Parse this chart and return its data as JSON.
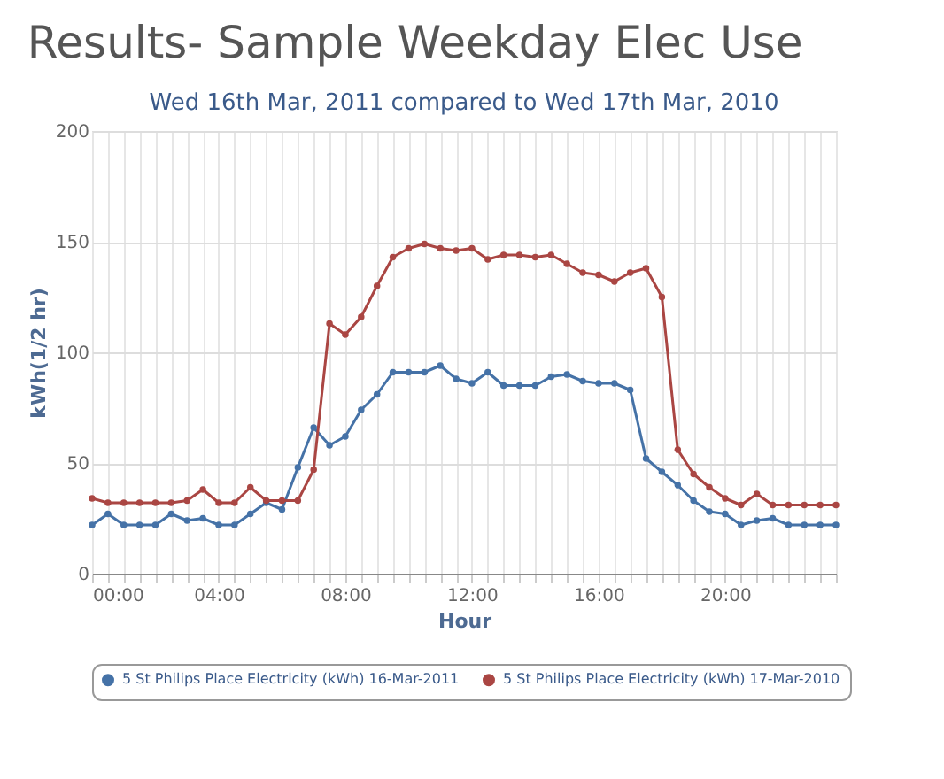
{
  "chart_data": {
    "type": "line",
    "title": "Results- Sample Weekday Elec Use",
    "subtitle": "Wed 16th Mar, 2011 compared to Wed 17th Mar, 2010",
    "xlabel": "Hour",
    "ylabel": "kWh(1/2 hr)",
    "x": [
      0,
      0.5,
      1,
      1.5,
      2,
      2.5,
      3,
      3.5,
      4,
      4.5,
      5,
      5.5,
      6,
      6.5,
      7,
      7.5,
      8,
      8.5,
      9,
      9.5,
      10,
      10.5,
      11,
      11.5,
      12,
      12.5,
      13,
      13.5,
      14,
      14.5,
      15,
      15.5,
      16,
      16.5,
      17,
      17.5,
      18,
      18.5,
      19,
      19.5,
      20,
      20.5,
      21,
      21.5,
      22,
      22.5,
      23,
      23.5
    ],
    "series": [
      {
        "name": "5 St Philips Place Electricity (kWh) 16-Mar-2011",
        "color": "#4572a7",
        "values": [
          22,
          27,
          22,
          22,
          22,
          27,
          24,
          25,
          22,
          22,
          27,
          32,
          29,
          48,
          66,
          58,
          62,
          74,
          81,
          91,
          91,
          91,
          94,
          88,
          86,
          91,
          85,
          85,
          85,
          89,
          90,
          87,
          86,
          86,
          83,
          52,
          46,
          40,
          33,
          28,
          27,
          22,
          24,
          25,
          22,
          22,
          22,
          22
        ]
      },
      {
        "name": "5 St Philips Place Electricity (kWh) 17-Mar-2010",
        "color": "#aa4643",
        "values": [
          34,
          32,
          32,
          32,
          32,
          32,
          33,
          38,
          32,
          32,
          39,
          33,
          33,
          33,
          47,
          113,
          108,
          116,
          130,
          143,
          147,
          149,
          147,
          146,
          147,
          142,
          144,
          144,
          143,
          144,
          140,
          136,
          135,
          132,
          136,
          138,
          125,
          56,
          45,
          39,
          34,
          31,
          36,
          31,
          31,
          31,
          31,
          31
        ]
      }
    ],
    "xlim": [
      0,
      23.5
    ],
    "xticks": [
      {
        "value": 0,
        "label": "00:00"
      },
      {
        "value": 0.5,
        "label": null
      },
      {
        "value": 1,
        "label": null
      },
      {
        "value": 1.5,
        "label": null
      },
      {
        "value": 2,
        "label": null
      },
      {
        "value": 2.5,
        "label": null
      },
      {
        "value": 3,
        "label": null
      },
      {
        "value": 3.5,
        "label": null
      },
      {
        "value": 4,
        "label": "04:00"
      },
      {
        "value": 4.5,
        "label": null
      },
      {
        "value": 5,
        "label": null
      },
      {
        "value": 5.5,
        "label": null
      },
      {
        "value": 6,
        "label": null
      },
      {
        "value": 6.5,
        "label": null
      },
      {
        "value": 7,
        "label": null
      },
      {
        "value": 7.5,
        "label": null
      },
      {
        "value": 8,
        "label": "08:00"
      },
      {
        "value": 8.5,
        "label": null
      },
      {
        "value": 9,
        "label": null
      },
      {
        "value": 9.5,
        "label": null
      },
      {
        "value": 10,
        "label": null
      },
      {
        "value": 10.5,
        "label": null
      },
      {
        "value": 11,
        "label": null
      },
      {
        "value": 11.5,
        "label": null
      },
      {
        "value": 12,
        "label": "12:00"
      },
      {
        "value": 12.5,
        "label": null
      },
      {
        "value": 13,
        "label": null
      },
      {
        "value": 13.5,
        "label": null
      },
      {
        "value": 14,
        "label": null
      },
      {
        "value": 14.5,
        "label": null
      },
      {
        "value": 15,
        "label": null
      },
      {
        "value": 15.5,
        "label": null
      },
      {
        "value": 16,
        "label": "16:00"
      },
      {
        "value": 16.5,
        "label": null
      },
      {
        "value": 17,
        "label": null
      },
      {
        "value": 17.5,
        "label": null
      },
      {
        "value": 18,
        "label": null
      },
      {
        "value": 18.5,
        "label": null
      },
      {
        "value": 19,
        "label": null
      },
      {
        "value": 19.5,
        "label": null
      },
      {
        "value": 20,
        "label": "20:00"
      },
      {
        "value": 20.5,
        "label": null
      },
      {
        "value": 21,
        "label": null
      },
      {
        "value": 21.5,
        "label": null
      },
      {
        "value": 22,
        "label": null
      },
      {
        "value": 22.5,
        "label": null
      },
      {
        "value": 23,
        "label": null
      },
      {
        "value": 23.5,
        "label": null
      }
    ],
    "ylim": [
      0,
      200
    ],
    "yticks": [
      0,
      50,
      100,
      150,
      200
    ],
    "grid": true,
    "legend": "bottom",
    "marker": "circle",
    "line_style": "solid"
  }
}
